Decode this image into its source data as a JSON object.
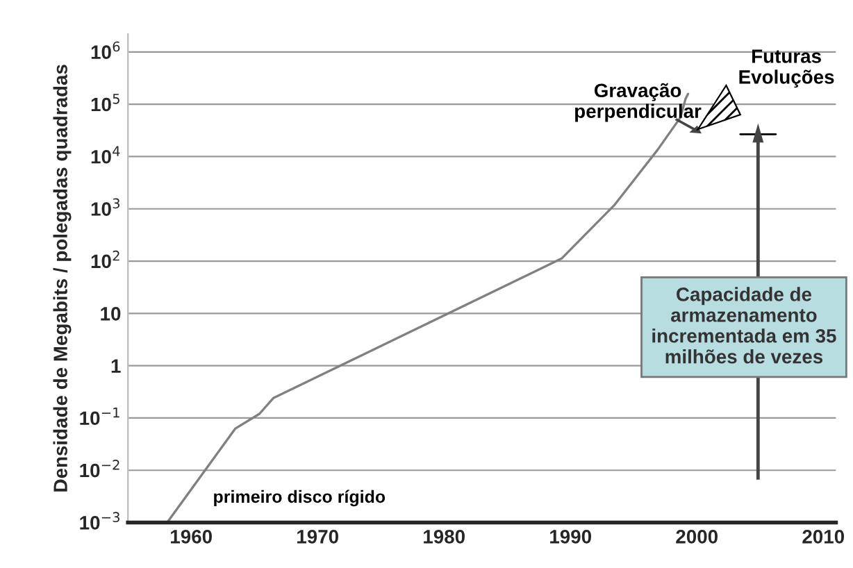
{
  "chart_data": {
    "type": "line",
    "ylabel": "Densidade de Megabits / polegadas quadradas",
    "x": [
      1958.1,
      1963.5,
      1965.4,
      1966.5,
      1989.3,
      1993.5,
      1996.9,
      1998.7,
      1999.1,
      1999.3
    ],
    "series": [
      {
        "color": "#808080",
        "values": [
          0.001,
          0.063,
          0.12,
          0.24,
          112,
          1200,
          13500,
          56000,
          126000,
          158000
        ]
      }
    ],
    "log": "y",
    "xlim": [
      1955,
      2011
    ],
    "ylim": [
      0.001,
      2200000
    ],
    "xticks": [
      1960,
      1970,
      1980,
      1990,
      2000,
      2010
    ],
    "yticks": [
      {
        "value": 0.001,
        "label": "10$^{−3}$"
      },
      {
        "value": 0.01,
        "label": "10$^{−2}$"
      },
      {
        "value": 0.1,
        "label": "10$^{−1}$"
      },
      1,
      10,
      {
        "value": 100,
        "label": "10$^{2}$"
      },
      {
        "value": 1000,
        "label": "10$^{3}$"
      },
      {
        "value": 10000,
        "label": "10$^{4}$"
      },
      {
        "value": 100000,
        "label": "10$^{5}$"
      },
      {
        "value": 1000000,
        "label": "10$^{6}$"
      }
    ],
    "grid": "y",
    "marker": "none",
    "line_style": "solid",
    "annotations": [
      "primeiro disco rígido",
      "Gravação\nperpendicular",
      "Futuras\nEvoluções",
      "Capacidade de\narmazenamento\nincrementada em 35\nmilhões de vezes"
    ]
  }
}
